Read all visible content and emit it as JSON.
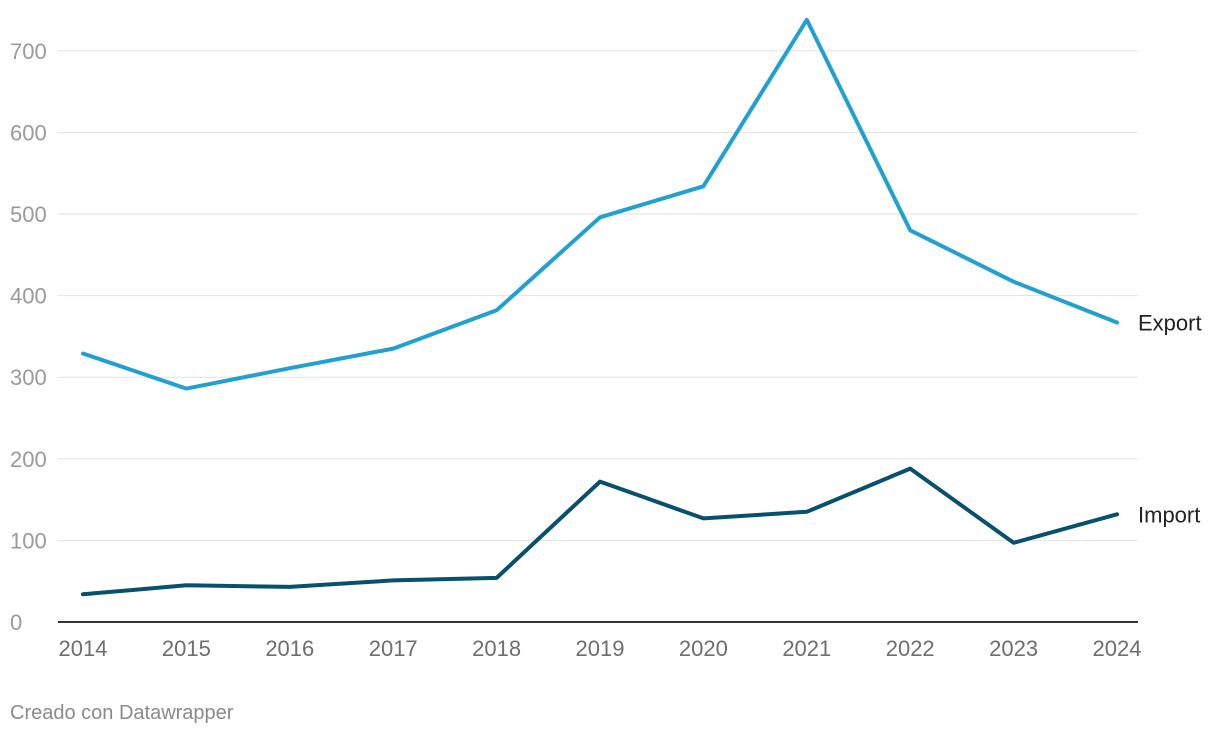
{
  "credit": "Creado con Datawrapper",
  "chart_data": {
    "type": "line",
    "x": [
      2014,
      2015,
      2016,
      2017,
      2018,
      2019,
      2020,
      2021,
      2022,
      2023,
      2024
    ],
    "series": [
      {
        "name": "Export",
        "color": "#21a0d2",
        "values": [
          329,
          286,
          311,
          335,
          382,
          496,
          534,
          738,
          480,
          417,
          367
        ]
      },
      {
        "name": "Import",
        "color": "#08506f",
        "values": [
          34,
          45,
          43,
          51,
          54,
          172,
          127,
          135,
          188,
          97,
          132
        ]
      }
    ],
    "yticks": [
      0,
      100,
      200,
      300,
      400,
      500,
      600,
      700
    ],
    "ylim": [
      0,
      740
    ],
    "grid": true,
    "legend": "direct labels at line ends"
  }
}
